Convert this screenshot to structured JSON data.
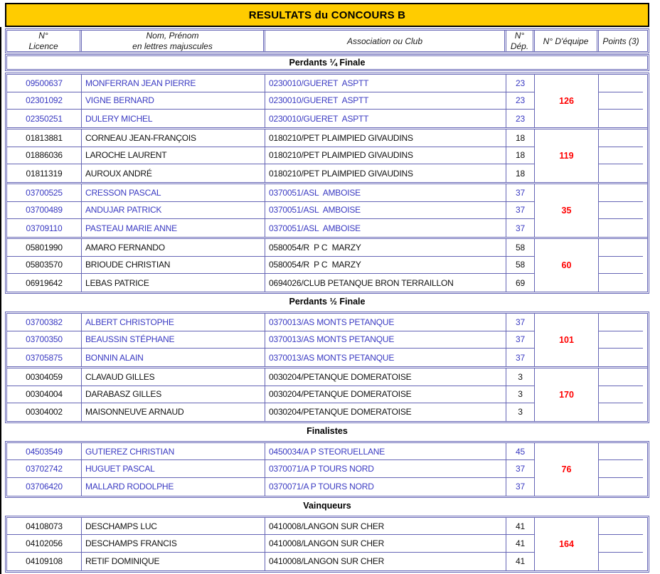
{
  "page": {
    "title": "RESULTATS du CONCOURS B"
  },
  "colors": {
    "banner_gold": "#FFCC00",
    "table_border_blue": "#6565B5",
    "row_text_blue": "#3A3AC2",
    "team_number_red": "#FF0000"
  },
  "table": {
    "columns": [
      {
        "id": "licence",
        "label": "N°\nLicence"
      },
      {
        "id": "nom",
        "label": "Nom, Prénom\nen lettres majuscules"
      },
      {
        "id": "club",
        "label": "Association ou Club"
      },
      {
        "id": "dep",
        "label": "N°\nDép."
      },
      {
        "id": "equipe",
        "label": "N° D'équipe"
      },
      {
        "id": "points",
        "label": "Points (3)"
      }
    ]
  },
  "sections": [
    {
      "title": "Perdants ¼ Finale",
      "style": "boxed",
      "teams": [
        {
          "equipe": "126",
          "color": "blue",
          "players": [
            {
              "licence": "09500637",
              "nom": "MONFERRAN JEAN PIERRE",
              "club": "0230010/GUERET  ASPTT",
              "dep": "23"
            },
            {
              "licence": "02301092",
              "nom": "VIGNE BERNARD",
              "club": "0230010/GUERET  ASPTT",
              "dep": "23"
            },
            {
              "licence": "02350251",
              "nom": "DULERY MICHEL",
              "club": "0230010/GUERET  ASPTT",
              "dep": "23"
            }
          ]
        },
        {
          "equipe": "119",
          "color": "black",
          "players": [
            {
              "licence": "01813881",
              "nom": "CORNEAU JEAN-FRANÇOIS",
              "club": "0180210/PET PLAIMPIED GIVAUDINS",
              "dep": "18"
            },
            {
              "licence": "01886036",
              "nom": "LAROCHE LAURENT",
              "club": "0180210/PET PLAIMPIED GIVAUDINS",
              "dep": "18"
            },
            {
              "licence": "01811319",
              "nom": "AUROUX ANDRÉ",
              "club": "0180210/PET PLAIMPIED GIVAUDINS",
              "dep": "18"
            }
          ]
        },
        {
          "equipe": "35",
          "color": "blue",
          "players": [
            {
              "licence": "03700525",
              "nom": "CRESSON PASCAL",
              "club": "0370051/ASL  AMBOISE",
              "dep": "37"
            },
            {
              "licence": "03700489",
              "nom": "ANDUJAR PATRICK",
              "club": "0370051/ASL  AMBOISE",
              "dep": "37"
            },
            {
              "licence": "03709110",
              "nom": "PASTEAU MARIE ANNE",
              "club": "0370051/ASL  AMBOISE",
              "dep": "37"
            }
          ]
        },
        {
          "equipe": "60",
          "color": "black",
          "players": [
            {
              "licence": "05801990",
              "nom": "AMARO FERNANDO",
              "club": "0580054/R  P C  MARZY",
              "dep": "58"
            },
            {
              "licence": "05803570",
              "nom": "BRIOUDE CHRISTIAN",
              "club": "0580054/R  P C  MARZY",
              "dep": "58"
            },
            {
              "licence": "06919642",
              "nom": "LEBAS PATRICE",
              "club": "0694026/CLUB PETANQUE BRON TERRAILLON",
              "dep": "69"
            }
          ]
        }
      ]
    },
    {
      "title": "Perdants ½ Finale",
      "style": "plain",
      "teams": [
        {
          "equipe": "101",
          "color": "blue",
          "players": [
            {
              "licence": "03700382",
              "nom": "ALBERT CHRISTOPHE",
              "club": "0370013/AS MONTS PETANQUE",
              "dep": "37"
            },
            {
              "licence": "03700350",
              "nom": "BEAUSSIN STÉPHANE",
              "club": "0370013/AS MONTS PETANQUE",
              "dep": "37"
            },
            {
              "licence": "03705875",
              "nom": "BONNIN ALAIN",
              "club": "0370013/AS MONTS PETANQUE",
              "dep": "37"
            }
          ]
        },
        {
          "equipe": "170",
          "color": "black",
          "players": [
            {
              "licence": "00304059",
              "nom": "CLAVAUD GILLES",
              "club": "0030204/PETANQUE DOMERATOISE",
              "dep": "3"
            },
            {
              "licence": "00304004",
              "nom": "DARABASZ GILLES",
              "club": "0030204/PETANQUE DOMERATOISE",
              "dep": "3"
            },
            {
              "licence": "00304002",
              "nom": "MAISONNEUVE ARNAUD",
              "club": "0030204/PETANQUE DOMERATOISE",
              "dep": "3"
            }
          ]
        }
      ]
    },
    {
      "title": "Finalistes",
      "style": "plain",
      "teams": [
        {
          "equipe": "76",
          "color": "blue",
          "players": [
            {
              "licence": "04503549",
              "nom": "GUTIEREZ CHRISTIAN",
              "club": "0450034/A P STEORUELLANE",
              "dep": "45"
            },
            {
              "licence": "03702742",
              "nom": "HUGUET PASCAL",
              "club": "0370071/A P TOURS NORD",
              "dep": "37"
            },
            {
              "licence": "03706420",
              "nom": "MALLARD RODOLPHE",
              "club": "0370071/A P TOURS NORD",
              "dep": "37"
            }
          ]
        }
      ]
    },
    {
      "title": "Vainqueurs",
      "style": "plain",
      "teams": [
        {
          "equipe": "164",
          "color": "black",
          "players": [
            {
              "licence": "04108073",
              "nom": "DESCHAMPS LUC",
              "club": "0410008/LANGON SUR CHER",
              "dep": "41"
            },
            {
              "licence": "04102056",
              "nom": "DESCHAMPS FRANCIS",
              "club": "0410008/LANGON SUR CHER",
              "dep": "41"
            },
            {
              "licence": "04109108",
              "nom": "RETIF DOMINIQUE",
              "club": "0410008/LANGON SUR CHER",
              "dep": "41"
            }
          ]
        }
      ]
    }
  ]
}
